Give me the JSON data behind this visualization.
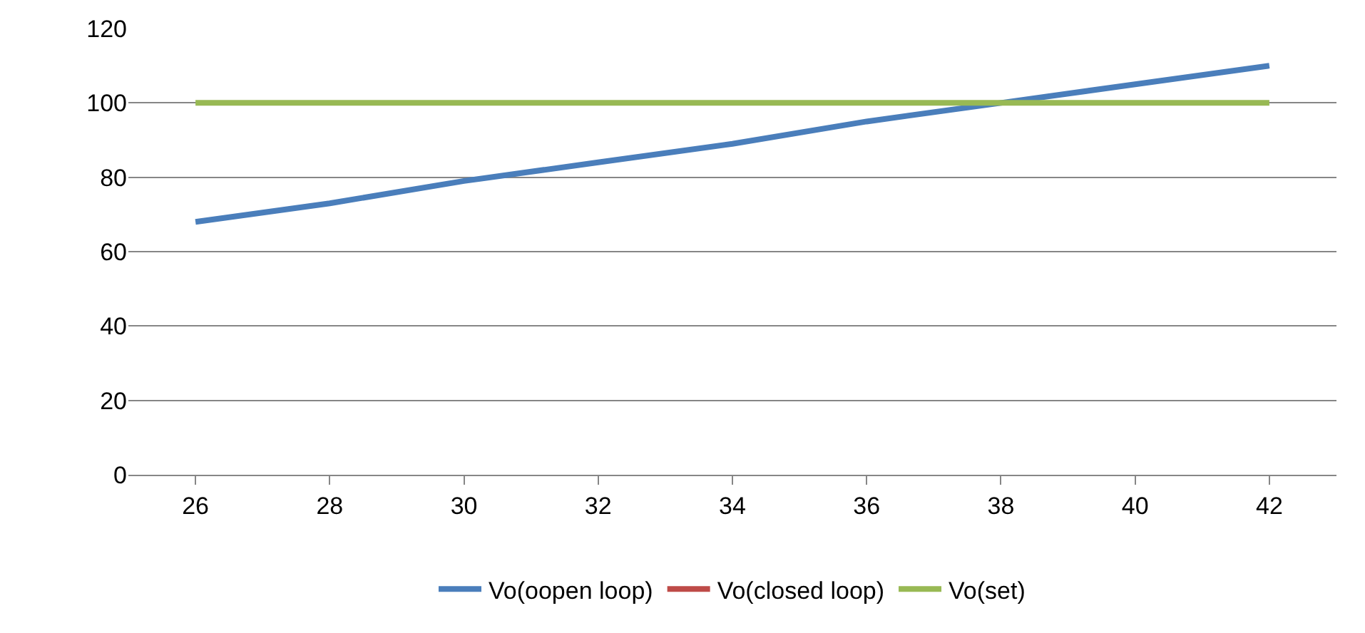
{
  "chart_data": {
    "type": "line",
    "categories": [
      "26",
      "28",
      "30",
      "32",
      "34",
      "36",
      "38",
      "40",
      "42"
    ],
    "series": [
      {
        "name": "Vo(oopen loop)",
        "color": "#4a7ebb",
        "values": [
          68,
          73,
          79,
          84,
          89,
          95,
          100,
          105,
          110
        ]
      },
      {
        "name": "Vo(closed loop)",
        "color": "#be4b48",
        "values": [
          null,
          null,
          null,
          null,
          null,
          null,
          null,
          null,
          null
        ]
      },
      {
        "name": "Vo(set)",
        "color": "#98b954",
        "values": [
          100,
          100,
          100,
          100,
          100,
          100,
          100,
          100,
          100
        ]
      }
    ],
    "ylim": [
      0,
      120
    ],
    "yticks": [
      0,
      20,
      40,
      60,
      80,
      100,
      120
    ],
    "grid": "y",
    "legend": "bottom",
    "marker": "none",
    "line_style": "solid"
  }
}
